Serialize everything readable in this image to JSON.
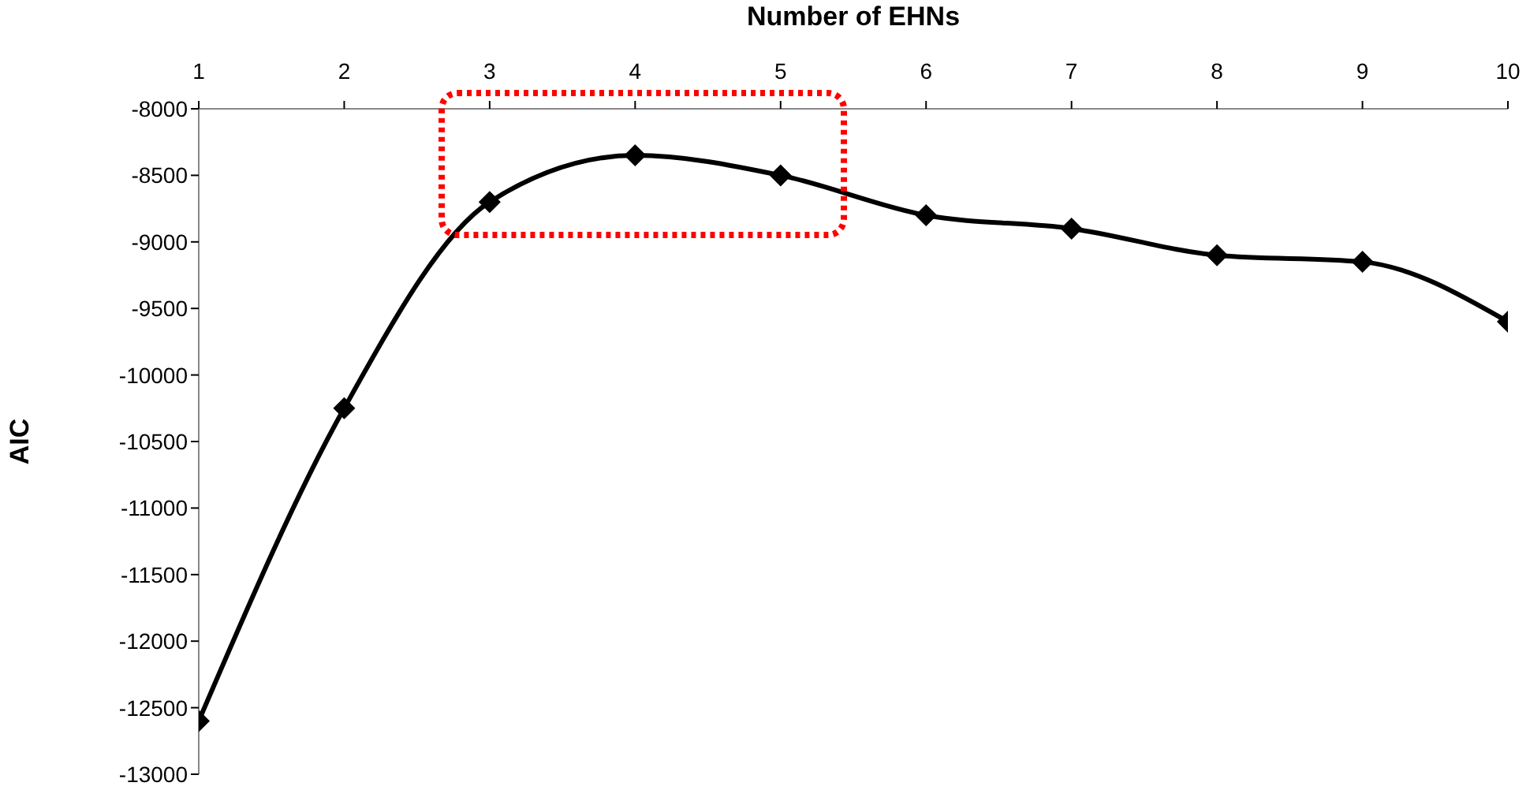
{
  "chart_data": {
    "type": "line",
    "xlabel": "Number of EHNs",
    "ylabel": "AIC",
    "x": [
      1,
      2,
      3,
      4,
      5,
      6,
      7,
      8,
      9,
      10
    ],
    "series": [
      {
        "color": "#000000",
        "values": [
          -12600,
          -10250,
          -8700,
          -8350,
          -8500,
          -8800,
          -8900,
          -9100,
          -9150,
          -9600
        ]
      }
    ],
    "xlim": [
      1,
      10
    ],
    "xticks": [
      1,
      2,
      3,
      4,
      5,
      6,
      7,
      8,
      9,
      10
    ],
    "ylim": [
      -13000,
      -8000
    ],
    "yticks": [
      -13000,
      -12500,
      -12000,
      -11500,
      -11000,
      -10500,
      -10000,
      -9500,
      -9000,
      -8500,
      -8000
    ],
    "marker": "diamond",
    "line_style": "solid",
    "grid": false
  }
}
